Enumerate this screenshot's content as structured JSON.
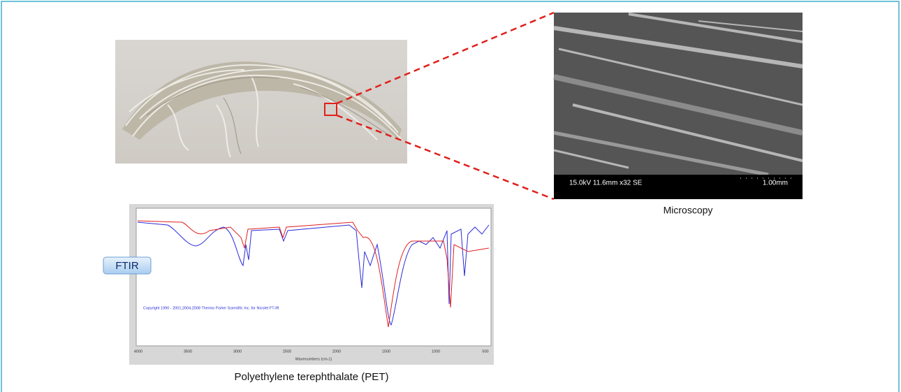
{
  "microscopy": {
    "caption": "Microscopy",
    "info_bar": "15.0kV 11.6mm x32 SE",
    "scale": "1.00mm"
  },
  "ftir": {
    "badge": "FTIR",
    "copyright": "Copyright 1990 - 2001,2004,2008 Thermo Fisher Scientific Inc. for Nicolet FT-IR",
    "x_label": "Wavenumbers (cm-1)",
    "xticks": [
      "4000",
      "3500",
      "3000",
      "2500",
      "2000",
      "1500",
      "1000",
      "500"
    ],
    "caption": "Polyethylene terephthalate (PET)"
  }
}
